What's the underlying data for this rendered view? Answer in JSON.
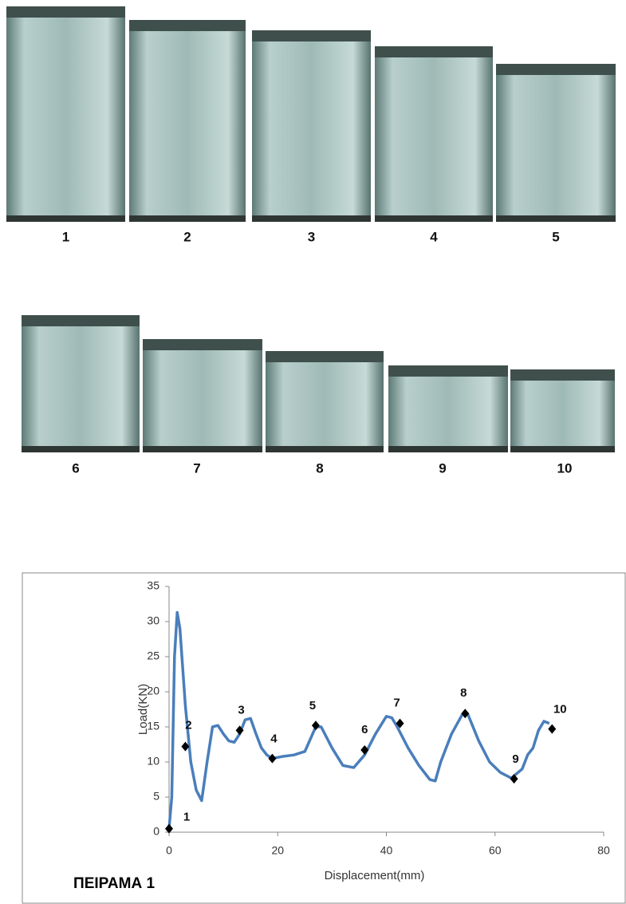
{
  "photos": {
    "labels": [
      "1",
      "2",
      "3",
      "4",
      "5",
      "6",
      "7",
      "8",
      "9",
      "10"
    ]
  },
  "chart_data": {
    "type": "line",
    "title": "ΠΕΙΡΑΜΑ 1",
    "x_label": "Displacement(mm)",
    "y_label": "Load(KN)",
    "xlim": [
      0,
      80
    ],
    "xticks": [
      0,
      20,
      40,
      60,
      80
    ],
    "ylim": [
      0,
      35
    ],
    "yticks": [
      0,
      5,
      10,
      15,
      20,
      25,
      30,
      35
    ],
    "grid": false,
    "series": [
      {
        "color": "#4a7ebb",
        "x": [
          0,
          0.5,
          1,
          1.5,
          2,
          3,
          4,
          5,
          6,
          7,
          8,
          9,
          10,
          11,
          12,
          13,
          14,
          15,
          16,
          17,
          18,
          19,
          21,
          23,
          25,
          27,
          28,
          30,
          32,
          34,
          36,
          38,
          40,
          41,
          42,
          44,
          46,
          48,
          49,
          50,
          52,
          54,
          55,
          57,
          59,
          61,
          63,
          65,
          66,
          67,
          68,
          69,
          70
        ],
        "values": [
          0.5,
          5,
          25,
          31.3,
          29,
          18,
          10,
          6,
          4.5,
          10,
          15,
          15.2,
          14,
          13,
          12.8,
          14,
          16,
          16.2,
          14,
          12,
          11,
          10.5,
          10.8,
          11,
          11.5,
          15,
          15,
          12,
          9.5,
          9.2,
          11,
          14,
          16.5,
          16.3,
          15,
          12,
          9.5,
          7.5,
          7.3,
          10,
          14,
          16.8,
          16.8,
          13,
          10,
          8.5,
          7.7,
          9,
          11,
          12,
          14.5,
          15.8,
          15.5
        ]
      },
      {
        "color": "#000000",
        "marker": "diamond",
        "x": [
          0,
          3,
          13,
          19,
          27,
          36,
          42.5,
          54.5,
          63.5,
          70.5
        ],
        "values": [
          0.5,
          12.2,
          14.5,
          10.5,
          15.2,
          11.7,
          15.5,
          16.9,
          7.6,
          14.7
        ],
        "point_labels": [
          "1",
          "2",
          "3",
          "4",
          "5",
          "6",
          "7",
          "8",
          "9",
          "10"
        ]
      }
    ]
  }
}
